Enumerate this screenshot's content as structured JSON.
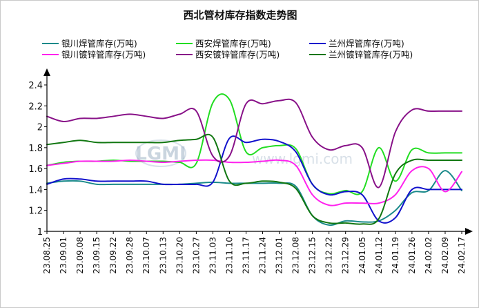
{
  "watermark": {
    "logo": "LGMI",
    "url": "www.lgmi.com"
  },
  "chart_data": {
    "type": "line",
    "title": "西北管材库存指数走势图",
    "xlabel": "",
    "ylabel": "",
    "ylim": [
      1,
      2.4
    ],
    "yticks": [
      "1",
      "1.2",
      "1.4",
      "1.6",
      "1.8",
      "2",
      "2.2",
      "2.4"
    ],
    "grid": false,
    "legend_position": "top",
    "categories": [
      "23.08.25",
      "23.09.01",
      "23.09.08",
      "23.09.15",
      "23.09.22",
      "23.09.28",
      "23.10.07",
      "23.10.13",
      "23.10.20",
      "23.10.27",
      "23.11.03",
      "23.11.10",
      "23.11.17",
      "23.11.24",
      "23.12.01",
      "23.12.08",
      "23.12.15",
      "23.12.22",
      "23.12.29",
      "24.01.05",
      "24.01.12",
      "24.01.19",
      "24.01.26",
      "24.02.02",
      "24.02.09",
      "24.02.17"
    ],
    "series": [
      {
        "name": "银川焊管库存(万吨)",
        "color": "#1a8a8a",
        "values": [
          1.46,
          1.48,
          1.48,
          1.45,
          1.45,
          1.45,
          1.45,
          1.45,
          1.45,
          1.46,
          1.47,
          1.46,
          1.46,
          1.46,
          1.46,
          1.43,
          1.15,
          1.06,
          1.1,
          1.09,
          1.1,
          1.2,
          1.37,
          1.39,
          1.58,
          1.39
        ]
      },
      {
        "name": "西安焊管库存(万吨)",
        "color": "#22dd22",
        "values": [
          1.63,
          1.66,
          1.67,
          1.67,
          1.68,
          1.67,
          1.67,
          1.67,
          1.66,
          1.65,
          2.23,
          2.26,
          1.76,
          1.8,
          1.82,
          1.79,
          1.45,
          1.36,
          1.39,
          1.38,
          1.8,
          1.48,
          1.78,
          1.75,
          1.75,
          1.75
        ]
      },
      {
        "name": "兰州焊管库存(万吨)",
        "color": "#1111cc",
        "values": [
          1.45,
          1.5,
          1.5,
          1.48,
          1.48,
          1.48,
          1.48,
          1.45,
          1.45,
          1.45,
          1.47,
          1.89,
          1.85,
          1.88,
          1.86,
          1.76,
          1.45,
          1.35,
          1.38,
          1.35,
          1.1,
          1.13,
          1.4,
          1.4,
          1.4,
          1.4
        ]
      },
      {
        "name": "银川镀锌管库存(万吨)",
        "color": "#ff22ee",
        "values": [
          1.63,
          1.65,
          1.67,
          1.67,
          1.67,
          1.68,
          1.67,
          1.66,
          1.67,
          1.68,
          1.68,
          1.66,
          1.66,
          1.67,
          1.68,
          1.63,
          1.35,
          1.25,
          1.27,
          1.27,
          1.27,
          1.35,
          1.58,
          1.6,
          1.38,
          1.57
        ]
      },
      {
        "name": "西安镀锌管库存(万吨)",
        "color": "#881188",
        "values": [
          2.1,
          2.05,
          2.08,
          2.08,
          2.1,
          2.12,
          2.1,
          2.08,
          2.12,
          2.15,
          1.72,
          1.72,
          2.22,
          2.22,
          2.25,
          2.23,
          1.9,
          1.78,
          1.82,
          1.8,
          1.42,
          1.95,
          2.16,
          2.15,
          2.15,
          2.15
        ]
      },
      {
        "name": "兰州镀锌管库存(万吨)",
        "color": "#117711",
        "values": [
          1.83,
          1.85,
          1.87,
          1.85,
          1.85,
          1.85,
          1.85,
          1.85,
          1.87,
          1.88,
          1.9,
          1.48,
          1.46,
          1.48,
          1.47,
          1.41,
          1.15,
          1.08,
          1.08,
          1.07,
          1.12,
          1.55,
          1.68,
          1.68,
          1.68,
          1.68
        ]
      }
    ]
  }
}
